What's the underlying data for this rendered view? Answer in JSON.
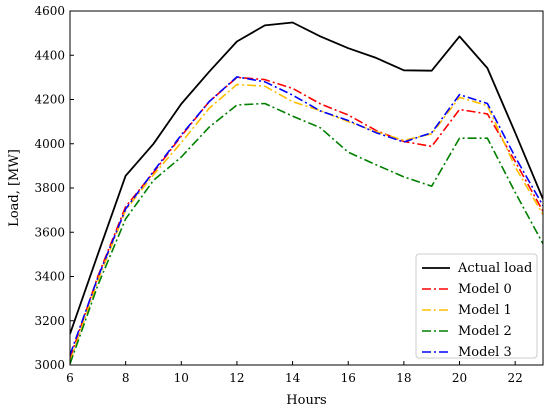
{
  "chart_data": {
    "type": "line",
    "xlabel": "Hours",
    "ylabel": "Load, [MW]",
    "xlim": [
      6,
      23
    ],
    "ylim": [
      3000,
      4600
    ],
    "xticks": [
      6,
      8,
      10,
      12,
      14,
      16,
      18,
      20,
      22
    ],
    "yticks": [
      3000,
      3200,
      3400,
      3600,
      3800,
      4000,
      4200,
      4400,
      4600
    ],
    "grid": false,
    "legend_position": "bottom-right",
    "x": [
      6,
      7,
      8,
      9,
      10,
      11,
      12,
      13,
      14,
      15,
      16,
      17,
      18,
      19,
      20,
      21,
      22,
      23
    ],
    "series": [
      {
        "name": "Actual load",
        "color": "#000000",
        "dash": "solid",
        "values": [
          3140,
          3500,
          3855,
          4000,
          4180,
          4325,
          4462,
          4535,
          4548,
          4485,
          4432,
          4388,
          4332,
          4330,
          4485,
          4342,
          4050,
          3750
        ]
      },
      {
        "name": "Model 0",
        "color": "#ff0000",
        "dash": "dashdot",
        "values": [
          3030,
          3400,
          3715,
          3870,
          4035,
          4190,
          4300,
          4290,
          4250,
          4180,
          4130,
          4060,
          4010,
          3988,
          4155,
          4135,
          3920,
          3695
        ]
      },
      {
        "name": "Model 1",
        "color": "#ffbf00",
        "dash": "dashdot",
        "values": [
          3015,
          3380,
          3700,
          3860,
          4005,
          4160,
          4268,
          4260,
          4190,
          4150,
          4100,
          4055,
          4015,
          4045,
          4210,
          4172,
          3895,
          3680
        ]
      },
      {
        "name": "Model 2",
        "color": "#008000",
        "dash": "dashdot",
        "values": [
          3005,
          3360,
          3660,
          3835,
          3940,
          4075,
          4175,
          4182,
          4125,
          4072,
          3962,
          3905,
          3850,
          3808,
          4025,
          4025,
          3780,
          3548
        ]
      },
      {
        "name": "Model 3",
        "color": "#0000ff",
        "dash": "dashdot",
        "values": [
          3045,
          3395,
          3705,
          3875,
          4040,
          4190,
          4302,
          4280,
          4220,
          4148,
          4105,
          4050,
          4008,
          4050,
          4222,
          4182,
          3940,
          3720
        ]
      }
    ]
  }
}
